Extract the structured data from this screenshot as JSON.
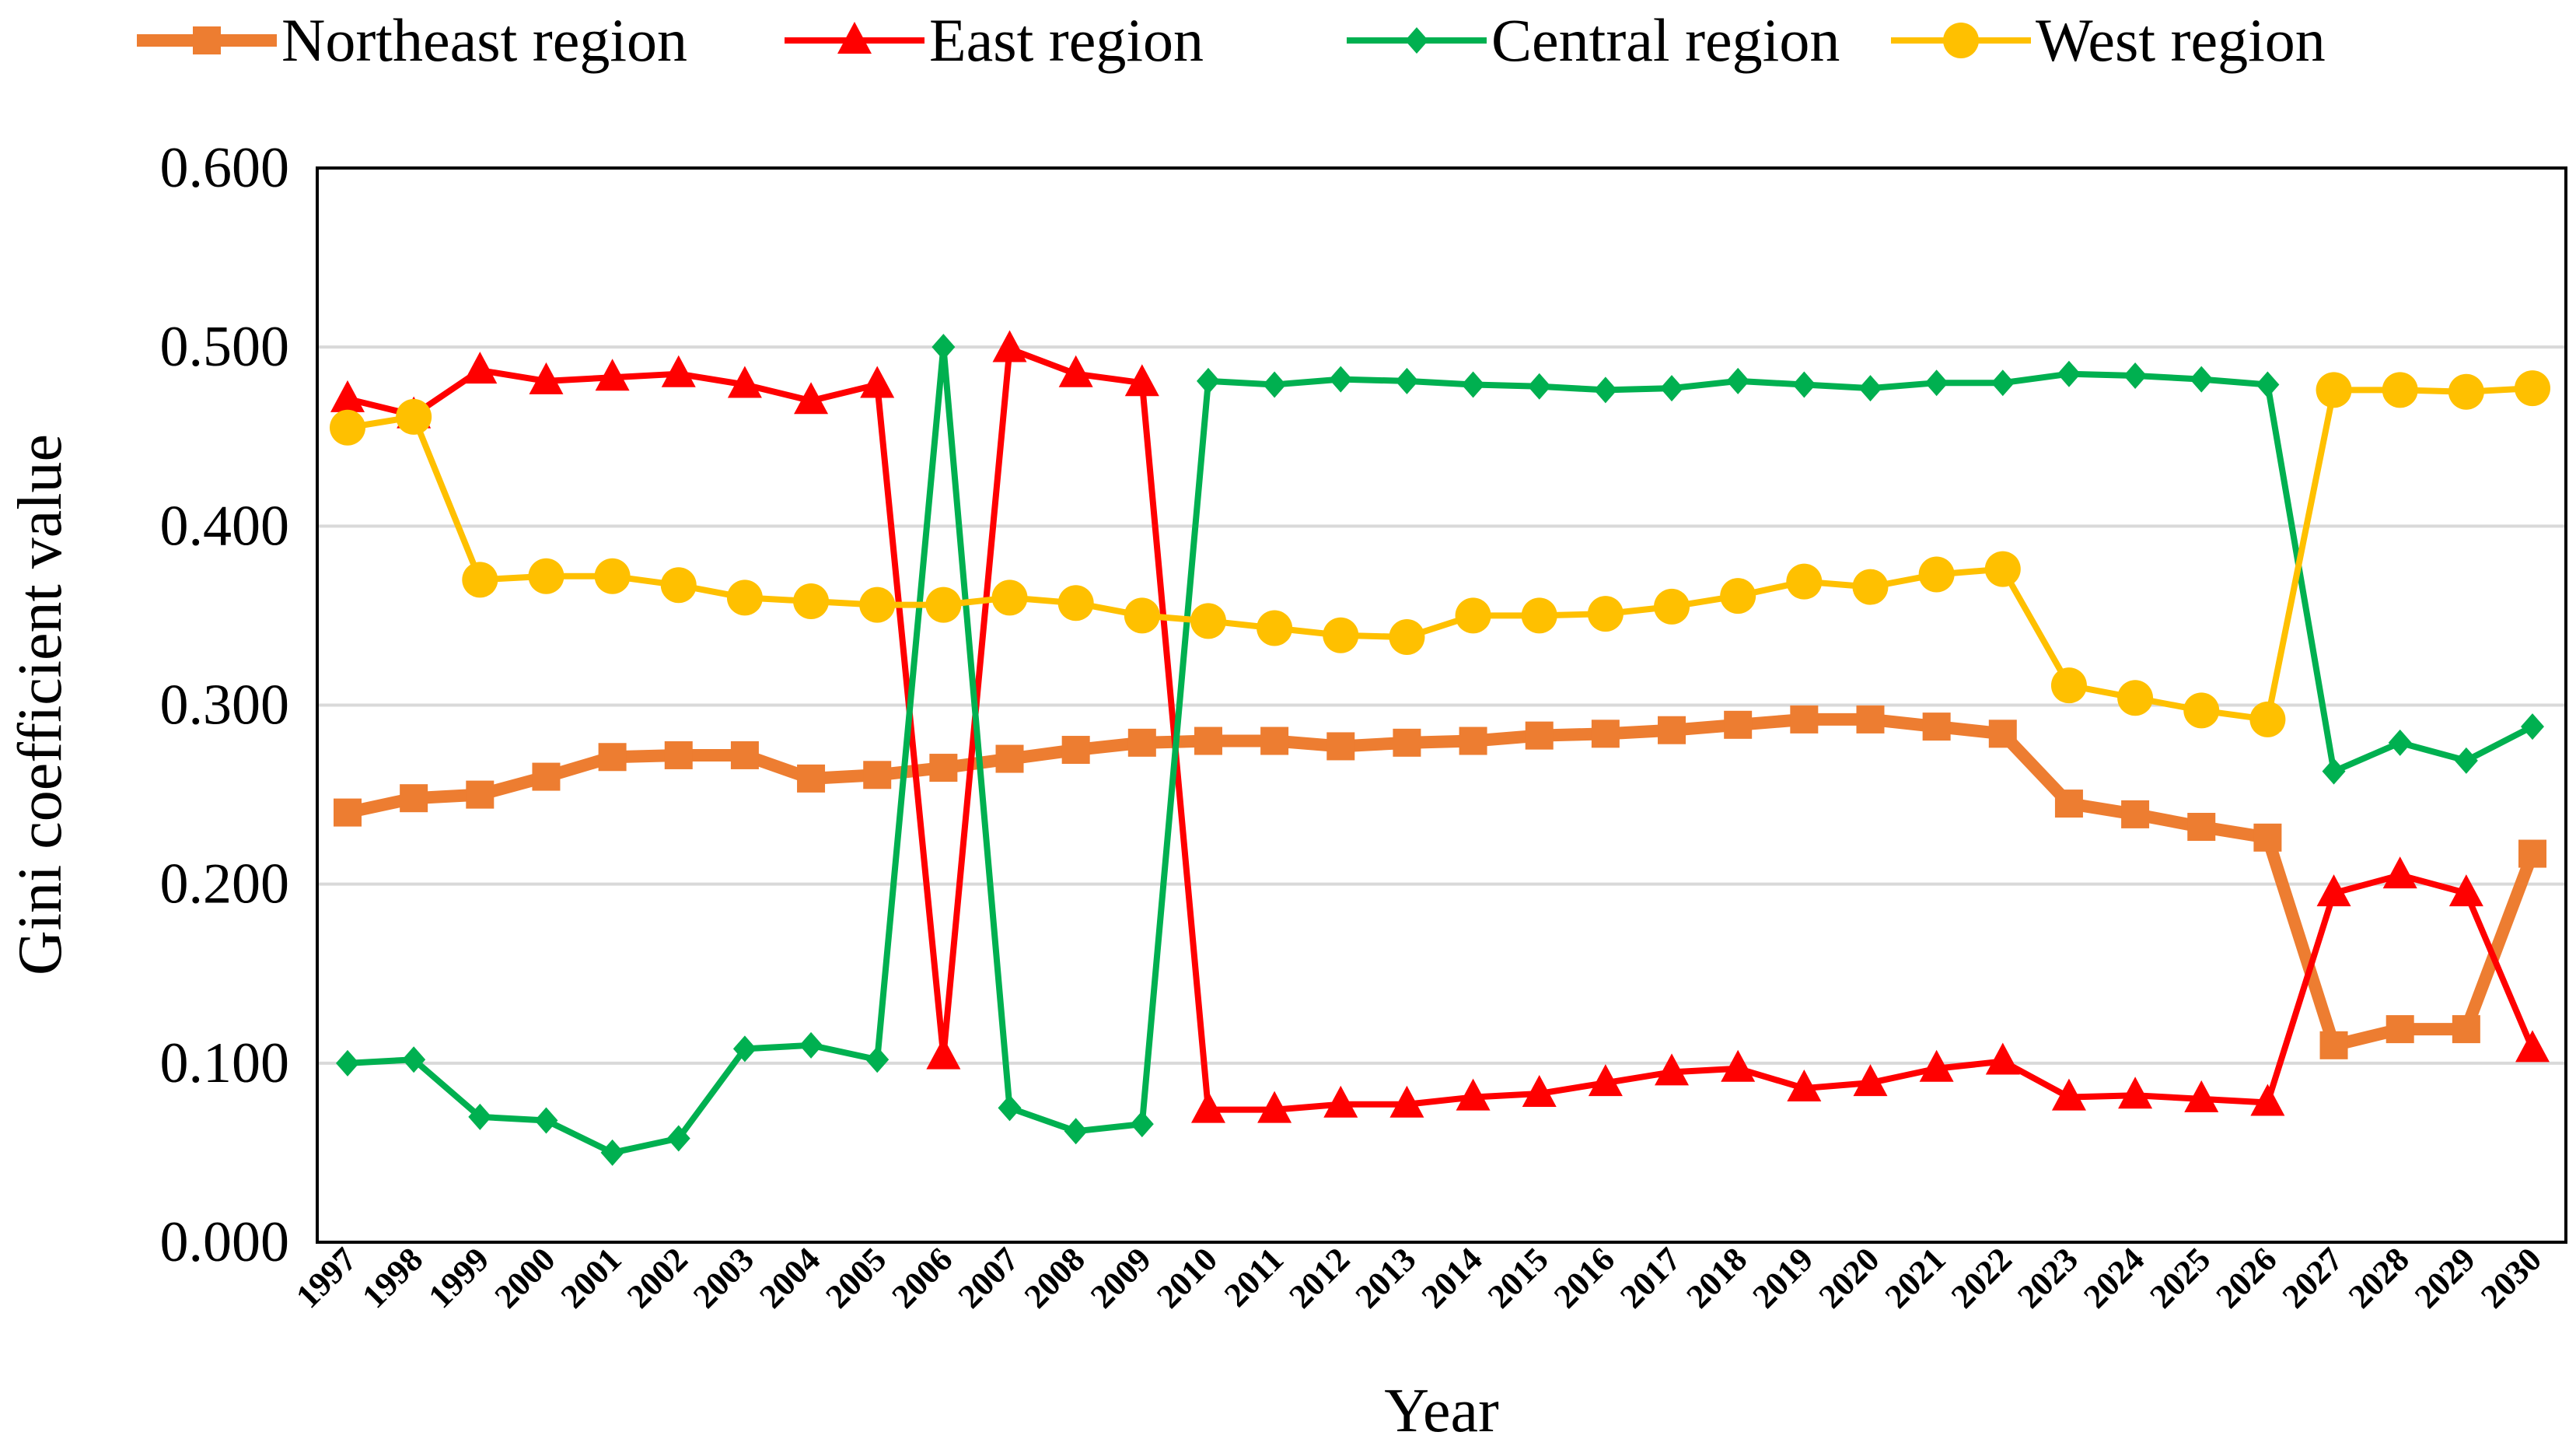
{
  "chart_data": {
    "type": "line",
    "title": "",
    "xlabel": "Year",
    "ylabel": "Gini coefficient value",
    "ylim": [
      0,
      0.6
    ],
    "ytick_values": [
      0,
      0.1,
      0.2,
      0.3,
      0.4,
      0.5,
      0.6
    ],
    "yticks": [
      "0.000",
      "0.100",
      "0.200",
      "0.300",
      "0.400",
      "0.500",
      "0.600"
    ],
    "grid": true,
    "legend_position": "top",
    "categories": [
      "1997",
      "1998",
      "1999",
      "2000",
      "2001",
      "2002",
      "2003",
      "2004",
      "2005",
      "2006",
      "2007",
      "2008",
      "2009",
      "2010",
      "2011",
      "2012",
      "2013",
      "2014",
      "2015",
      "2016",
      "2017",
      "2018",
      "2019",
      "2020",
      "2021",
      "2022",
      "2023",
      "2024",
      "2025",
      "2026",
      "2027",
      "2028",
      "2029",
      "2030"
    ],
    "series": [
      {
        "name": "Northeast region",
        "color": "#ED7D31",
        "marker": "square",
        "values": [
          0.24,
          0.248,
          0.25,
          0.26,
          0.271,
          0.272,
          0.272,
          0.259,
          0.261,
          0.265,
          0.27,
          0.275,
          0.279,
          0.28,
          0.28,
          0.277,
          0.279,
          0.28,
          0.283,
          0.284,
          0.286,
          0.289,
          0.292,
          0.292,
          0.288,
          0.284,
          0.245,
          0.239,
          0.232,
          0.226,
          0.11,
          0.119,
          0.119,
          0.217
        ]
      },
      {
        "name": "East region",
        "color": "#FF0000",
        "marker": "triangle",
        "values": [
          0.471,
          0.462,
          0.487,
          0.481,
          0.483,
          0.485,
          0.479,
          0.47,
          0.479,
          0.104,
          0.499,
          0.485,
          0.48,
          0.074,
          0.074,
          0.077,
          0.077,
          0.081,
          0.083,
          0.089,
          0.095,
          0.097,
          0.086,
          0.089,
          0.097,
          0.101,
          0.081,
          0.082,
          0.08,
          0.078,
          0.195,
          0.205,
          0.195,
          0.108
        ]
      },
      {
        "name": "Central region",
        "color": "#00B050",
        "marker": "diamond",
        "values": [
          0.1,
          0.102,
          0.07,
          0.068,
          0.05,
          0.058,
          0.108,
          0.11,
          0.102,
          0.5,
          0.075,
          0.062,
          0.066,
          0.481,
          0.479,
          0.482,
          0.481,
          0.479,
          0.478,
          0.476,
          0.477,
          0.481,
          0.479,
          0.477,
          0.48,
          0.48,
          0.485,
          0.484,
          0.482,
          0.479,
          0.263,
          0.279,
          0.269,
          0.288
        ]
      },
      {
        "name": "West region",
        "color": "#FFC000",
        "marker": "circle",
        "values": [
          0.455,
          0.461,
          0.37,
          0.372,
          0.372,
          0.367,
          0.36,
          0.358,
          0.356,
          0.356,
          0.36,
          0.357,
          0.35,
          0.347,
          0.343,
          0.339,
          0.338,
          0.35,
          0.35,
          0.351,
          0.355,
          0.361,
          0.369,
          0.366,
          0.373,
          0.376,
          0.311,
          0.304,
          0.297,
          0.292,
          0.476,
          0.476,
          0.475,
          0.477
        ]
      }
    ]
  }
}
